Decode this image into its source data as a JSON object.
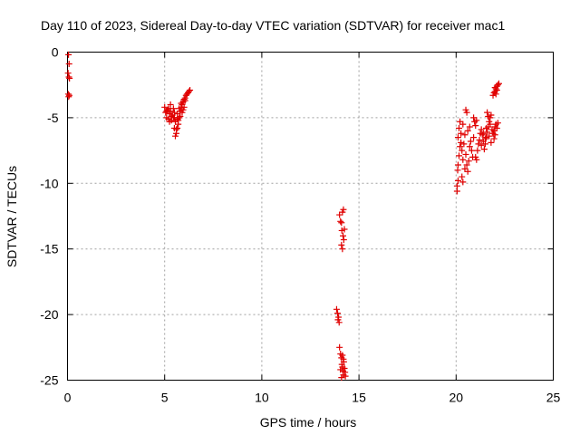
{
  "chart_data": {
    "type": "scatter",
    "title": "Day 110 of 2023, Sidereal Day-to-day VTEC variation (SDTVAR) for receiver mac1",
    "xlabel": "GPS time / hours",
    "ylabel": "SDTVAR / TECUs",
    "xlim": [
      0,
      25
    ],
    "ylim": [
      -25,
      0
    ],
    "xticks": [
      0,
      5,
      10,
      15,
      20,
      25
    ],
    "yticks": [
      0,
      -5,
      -10,
      -15,
      -20,
      -25
    ],
    "xtick_labels": [
      "0",
      "5",
      "10",
      "15",
      "20",
      "25"
    ],
    "ytick_labels": [
      "0",
      "-5",
      "-10",
      "-15",
      "-20",
      "-25"
    ],
    "grid": true,
    "marker": "+",
    "marker_color": "#e00000",
    "series": [
      {
        "name": "SDTVAR",
        "points": [
          [
            0.05,
            -0.2
          ],
          [
            0.08,
            -0.9
          ],
          [
            0.03,
            -1.6
          ],
          [
            0.07,
            -1.9
          ],
          [
            0.1,
            -2.0
          ],
          [
            0.04,
            -3.2
          ],
          [
            0.06,
            -3.4
          ],
          [
            0.09,
            -3.3
          ],
          [
            5.0,
            -4.2
          ],
          [
            5.05,
            -4.6
          ],
          [
            5.1,
            -5.0
          ],
          [
            5.15,
            -4.4
          ],
          [
            5.2,
            -5.1
          ],
          [
            5.25,
            -4.7
          ],
          [
            5.3,
            -4.5
          ],
          [
            5.35,
            -4.9
          ],
          [
            5.4,
            -4.8
          ],
          [
            5.45,
            -4.3
          ],
          [
            5.5,
            -4.6
          ],
          [
            5.55,
            -5.3
          ],
          [
            5.6,
            -6.2
          ],
          [
            5.65,
            -5.8
          ],
          [
            5.7,
            -5.5
          ],
          [
            5.75,
            -5.0
          ],
          [
            5.8,
            -4.5
          ],
          [
            5.85,
            -4.2
          ],
          [
            5.9,
            -4.0
          ],
          [
            5.95,
            -3.8
          ],
          [
            6.0,
            -3.6
          ],
          [
            6.05,
            -3.5
          ],
          [
            6.1,
            -3.3
          ],
          [
            6.15,
            -3.2
          ],
          [
            6.2,
            -3.1
          ],
          [
            6.25,
            -3.0
          ],
          [
            6.3,
            -2.9
          ],
          [
            5.5,
            -5.8
          ],
          [
            5.55,
            -6.4
          ],
          [
            5.6,
            -5.9
          ],
          [
            5.7,
            -5.2
          ],
          [
            5.8,
            -4.9
          ],
          [
            5.9,
            -4.6
          ],
          [
            6.0,
            -4.2
          ],
          [
            5.35,
            -5.2
          ],
          [
            5.45,
            -5.0
          ],
          [
            5.65,
            -4.7
          ],
          [
            5.75,
            -4.3
          ],
          [
            5.85,
            -3.9
          ],
          [
            6.05,
            -3.7
          ],
          [
            5.1,
            -4.5
          ],
          [
            5.2,
            -4.3
          ],
          [
            5.3,
            -4.0
          ],
          [
            5.25,
            -5.3
          ],
          [
            5.5,
            -5.0
          ],
          [
            5.65,
            -5.1
          ],
          [
            5.95,
            -4.4
          ],
          [
            14.0,
            -12.4
          ],
          [
            14.05,
            -12.9
          ],
          [
            14.1,
            -13.0
          ],
          [
            14.15,
            -12.2
          ],
          [
            14.2,
            -12.0
          ],
          [
            14.12,
            -13.6
          ],
          [
            14.18,
            -14.0
          ],
          [
            14.22,
            -14.3
          ],
          [
            14.25,
            -13.5
          ],
          [
            14.1,
            -14.7
          ],
          [
            14.15,
            -15.0
          ],
          [
            13.85,
            -19.6
          ],
          [
            13.9,
            -19.9
          ],
          [
            13.95,
            -20.2
          ],
          [
            13.92,
            -20.4
          ],
          [
            13.98,
            -20.6
          ],
          [
            14.0,
            -22.5
          ],
          [
            14.05,
            -23.0
          ],
          [
            14.1,
            -23.3
          ],
          [
            14.12,
            -23.8
          ],
          [
            14.15,
            -24.0
          ],
          [
            14.18,
            -24.3
          ],
          [
            14.2,
            -24.6
          ],
          [
            14.22,
            -23.6
          ],
          [
            14.25,
            -24.1
          ],
          [
            14.28,
            -24.4
          ],
          [
            14.3,
            -24.7
          ],
          [
            14.05,
            -24.2
          ],
          [
            14.1,
            -24.8
          ],
          [
            14.15,
            -23.1
          ],
          [
            14.2,
            -23.4
          ],
          [
            20.05,
            -10.6
          ],
          [
            20.05,
            -10.2
          ],
          [
            20.1,
            -9.8
          ],
          [
            20.08,
            -9.0
          ],
          [
            20.1,
            -8.6
          ],
          [
            20.15,
            -7.9
          ],
          [
            20.2,
            -7.2
          ],
          [
            20.1,
            -6.5
          ],
          [
            20.15,
            -5.8
          ],
          [
            20.2,
            -5.3
          ],
          [
            20.25,
            -6.2
          ],
          [
            20.3,
            -7.5
          ],
          [
            20.35,
            -8.2
          ],
          [
            20.4,
            -7.0
          ],
          [
            20.45,
            -6.3
          ],
          [
            20.5,
            -7.8
          ],
          [
            20.55,
            -8.6
          ],
          [
            20.6,
            -9.1
          ],
          [
            20.65,
            -8.3
          ],
          [
            20.7,
            -7.2
          ],
          [
            20.75,
            -6.8
          ],
          [
            20.8,
            -7.5
          ],
          [
            20.85,
            -8.0
          ],
          [
            20.9,
            -6.5
          ],
          [
            20.5,
            -4.4
          ],
          [
            20.55,
            -4.6
          ],
          [
            20.3,
            -9.5
          ],
          [
            20.35,
            -9.9
          ],
          [
            20.45,
            -8.9
          ],
          [
            20.25,
            -6.9
          ],
          [
            20.35,
            -5.5
          ],
          [
            20.6,
            -6.0
          ],
          [
            20.7,
            -5.7
          ],
          [
            21.0,
            -8.0
          ],
          [
            21.05,
            -8.2
          ],
          [
            21.1,
            -7.5
          ],
          [
            21.15,
            -7.0
          ],
          [
            21.2,
            -6.7
          ],
          [
            21.25,
            -6.2
          ],
          [
            21.3,
            -5.9
          ],
          [
            21.35,
            -6.3
          ],
          [
            21.4,
            -6.8
          ],
          [
            21.45,
            -7.4
          ],
          [
            21.5,
            -7.0
          ],
          [
            21.55,
            -6.5
          ],
          [
            21.6,
            -6.1
          ],
          [
            21.65,
            -5.7
          ],
          [
            21.7,
            -5.3
          ],
          [
            21.75,
            -5.0
          ],
          [
            21.8,
            -4.8
          ],
          [
            21.6,
            -4.6
          ],
          [
            21.65,
            -4.9
          ],
          [
            21.85,
            -5.9
          ],
          [
            21.9,
            -6.2
          ],
          [
            21.95,
            -6.0
          ],
          [
            22.0,
            -5.7
          ],
          [
            22.05,
            -5.5
          ],
          [
            22.1,
            -5.8
          ],
          [
            22.15,
            -5.4
          ],
          [
            21.5,
            -6.6
          ],
          [
            21.4,
            -6.2
          ],
          [
            21.3,
            -7.1
          ],
          [
            21.7,
            -6.4
          ],
          [
            21.8,
            -6.9
          ],
          [
            21.95,
            -6.6
          ],
          [
            21.55,
            -5.8
          ],
          [
            21.75,
            -5.5
          ],
          [
            22.0,
            -6.3
          ],
          [
            21.9,
            -3.3
          ],
          [
            21.95,
            -3.1
          ],
          [
            22.0,
            -3.0
          ],
          [
            22.05,
            -2.8
          ],
          [
            22.1,
            -2.6
          ],
          [
            22.15,
            -2.5
          ],
          [
            22.2,
            -2.4
          ],
          [
            22.1,
            -2.9
          ],
          [
            22.05,
            -3.2
          ],
          [
            22.0,
            -2.7
          ],
          [
            20.9,
            -5.0
          ],
          [
            20.95,
            -5.3
          ],
          [
            21.0,
            -5.6
          ],
          [
            21.05,
            -5.2
          ]
        ]
      }
    ]
  }
}
